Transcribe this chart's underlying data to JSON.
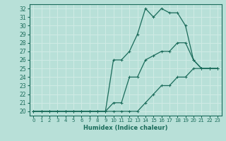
{
  "xlabel": "Humidex (Indice chaleur)",
  "ylabel": "",
  "xlim": [
    -0.5,
    23.5
  ],
  "ylim": [
    19.5,
    32.5
  ],
  "xticks": [
    0,
    1,
    2,
    3,
    4,
    5,
    6,
    7,
    8,
    9,
    10,
    11,
    12,
    13,
    14,
    15,
    16,
    17,
    18,
    19,
    20,
    21,
    22,
    23
  ],
  "yticks": [
    20,
    21,
    22,
    23,
    24,
    25,
    26,
    27,
    28,
    29,
    30,
    31,
    32
  ],
  "bg_color": "#b8e0d8",
  "line_color": "#1a6b5a",
  "grid_color": "#d0ebe5",
  "line1_x": [
    0,
    1,
    2,
    3,
    4,
    5,
    6,
    7,
    8,
    9,
    10,
    11,
    12,
    13,
    14,
    15,
    16,
    17,
    18,
    19,
    20,
    21,
    22,
    23
  ],
  "line1_y": [
    20,
    20,
    20,
    20,
    20,
    20,
    20,
    20,
    20,
    20,
    20,
    20,
    20,
    20,
    21,
    22,
    23,
    23,
    24,
    24,
    25,
    25,
    25,
    25
  ],
  "line2_x": [
    0,
    1,
    2,
    3,
    4,
    5,
    6,
    7,
    8,
    9,
    10,
    11,
    12,
    13,
    14,
    15,
    16,
    17,
    18,
    19,
    20,
    21,
    22,
    23
  ],
  "line2_y": [
    20,
    20,
    20,
    20,
    20,
    20,
    20,
    20,
    20,
    20,
    21,
    21,
    24,
    24,
    26,
    26.5,
    27,
    27,
    28,
    28,
    26,
    25,
    25,
    25
  ],
  "line3_x": [
    0,
    1,
    2,
    3,
    4,
    5,
    6,
    7,
    8,
    9,
    10,
    11,
    12,
    13,
    14,
    15,
    16,
    17,
    18,
    19,
    20,
    21,
    22,
    23
  ],
  "line3_y": [
    20,
    20,
    20,
    20,
    20,
    20,
    20,
    20,
    20,
    20,
    26,
    26,
    27,
    29,
    32,
    31,
    32,
    31.5,
    31.5,
    30,
    26,
    25,
    25,
    25
  ]
}
